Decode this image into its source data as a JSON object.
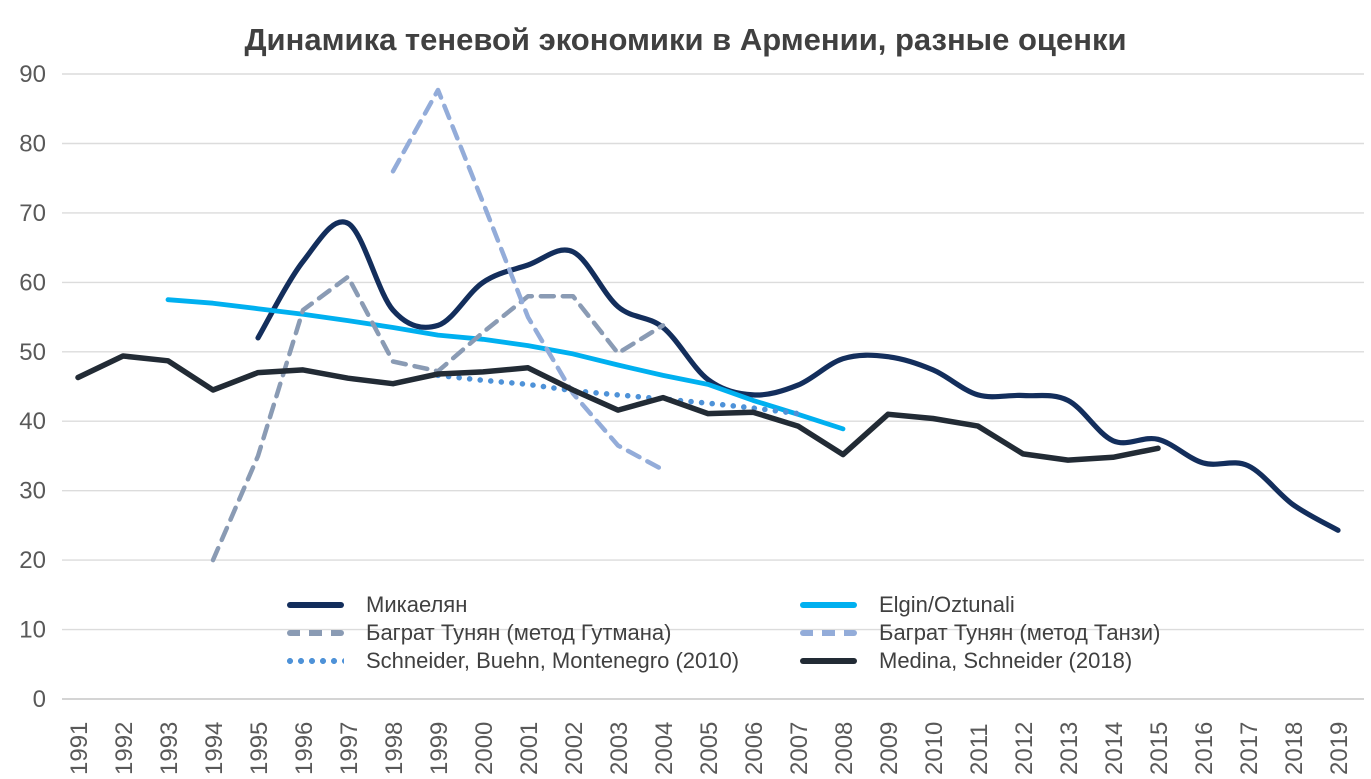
{
  "title": "Динамика теневой экономики в Армении, разные оценки",
  "chart_data": {
    "type": "line",
    "title": "Динамика теневой экономики в Армении, разные оценки",
    "xlabel": "",
    "ylabel": "",
    "xlim": [
      1991,
      2019
    ],
    "ylim": [
      0,
      90
    ],
    "grid": "horizontal",
    "legend_position": "bottom-inside",
    "y_ticks": [
      0,
      10,
      20,
      30,
      40,
      50,
      60,
      70,
      80,
      90
    ],
    "x_ticks": [
      1991,
      1992,
      1993,
      1994,
      1995,
      1996,
      1997,
      1998,
      1999,
      2000,
      2001,
      2002,
      2003,
      2004,
      2005,
      2006,
      2007,
      2008,
      2009,
      2010,
      2011,
      2012,
      2013,
      2014,
      2015,
      2016,
      2017,
      2018,
      2019
    ],
    "series": [
      {
        "name": "Микаелян",
        "color": "#132E5C",
        "style": "solid",
        "smooth": true,
        "width": 5.2,
        "years": [
          1995,
          1996,
          1997,
          1998,
          1999,
          2000,
          2001,
          2002,
          2003,
          2004,
          2005,
          2006,
          2007,
          2008,
          2009,
          2010,
          2011,
          2012,
          2013,
          2014,
          2015,
          2016,
          2017,
          2018,
          2019
        ],
        "values": [
          52,
          63,
          68.5,
          56,
          53.8,
          60,
          62.5,
          64.4,
          56.5,
          53.5,
          46,
          43.8,
          45.2,
          49,
          49.3,
          47.4,
          43.8,
          43.7,
          43,
          37.2,
          37.4,
          34,
          33.6,
          28,
          24.3
        ]
      },
      {
        "name": "Elgin/Oztunali",
        "color": "#00B0F0",
        "style": "solid",
        "smooth": false,
        "width": 4.8,
        "years": [
          1993,
          1994,
          1995,
          1996,
          1997,
          1998,
          1999,
          2000,
          2001,
          2002,
          2003,
          2004,
          2005,
          2006,
          2007,
          2008
        ],
        "values": [
          57.5,
          57,
          56.2,
          55.4,
          54.5,
          53.5,
          52.4,
          51.8,
          50.9,
          49.7,
          48.1,
          46.6,
          45.3,
          43,
          41,
          38.9
        ]
      },
      {
        "name": "Баграт Тунян (метод Гутмана)",
        "color": "#8A9BB4",
        "style": "dashed",
        "smooth": false,
        "width": 4.5,
        "years": [
          1994,
          1995,
          1996,
          1997,
          1998,
          1999,
          2000,
          2001,
          2002,
          2003,
          2004
        ],
        "values": [
          20,
          35,
          56,
          60.8,
          48.6,
          47.2,
          52.8,
          58,
          58,
          49.8,
          53.8
        ]
      },
      {
        "name": "Баграт Тунян (метод Танзи)",
        "color": "#93ACD9",
        "style": "dashed",
        "smooth": false,
        "width": 4.5,
        "years": [
          1998,
          1999,
          2000,
          2001,
          2002,
          2003,
          2004
        ],
        "values": [
          76,
          87.7,
          71.5,
          55,
          44,
          36.5,
          33
        ]
      },
      {
        "name": "Schneider, Buehn, Montenegro (2010)",
        "color": "#4E92D8",
        "style": "dotted",
        "smooth": false,
        "width": 5.5,
        "years": [
          1999,
          2000,
          2001,
          2002,
          2003,
          2004,
          2005,
          2006,
          2007
        ],
        "values": [
          46.6,
          45.9,
          45.3,
          44.4,
          43.8,
          43.2,
          42.6,
          41.9,
          41.1
        ]
      },
      {
        "name": "Medina, Schneider (2018)",
        "color": "#222B35",
        "style": "solid",
        "smooth": false,
        "width": 5.5,
        "years": [
          1991,
          1992,
          1993,
          1994,
          1995,
          1996,
          1997,
          1998,
          1999,
          2000,
          2001,
          2002,
          2003,
          2004,
          2005,
          2006,
          2007,
          2008,
          2009,
          2010,
          2011,
          2012,
          2013,
          2014,
          2015
        ],
        "values": [
          46.3,
          49.4,
          48.7,
          44.5,
          47,
          47.4,
          46.2,
          45.4,
          46.8,
          47.1,
          47.7,
          44.5,
          41.6,
          43.4,
          41.1,
          41.3,
          39.3,
          35.2,
          41,
          40.4,
          39.3,
          35.3,
          34.4,
          34.8,
          36.1
        ]
      }
    ]
  }
}
